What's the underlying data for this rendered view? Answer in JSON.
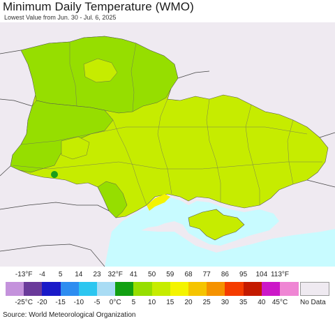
{
  "header": {
    "title": "Minimum Daily Temperature (WMO)",
    "subtitle": "Lowest Value from Jun. 30 - Jul. 6, 2025"
  },
  "map": {
    "region": "Ukraine",
    "colors": {
      "background_land": "#efeaf1",
      "sea": "#c8fbff",
      "level_10c": "#96de00",
      "level_15c": "#c6ec00",
      "level_20c": "#f4f400",
      "level_0c": "#1a9e1a"
    }
  },
  "legend": {
    "fahrenheit_ticks": [
      "-13°F",
      "-4",
      "5",
      "14",
      "23",
      "32°F",
      "41",
      "50",
      "59",
      "68",
      "77",
      "86",
      "95",
      "104",
      "113°F"
    ],
    "celsius_ticks": [
      "-25°C",
      "-20",
      "-15",
      "-10",
      "-5",
      "0°C",
      "5",
      "10",
      "15",
      "20",
      "25",
      "30",
      "35",
      "40",
      "45°C"
    ],
    "colors": [
      "#c492dc",
      "#6a3a9a",
      "#1a1ac8",
      "#2e8df0",
      "#2cc6f0",
      "#a9dcf4",
      "#12a012",
      "#96de00",
      "#c6ec00",
      "#f4f400",
      "#f5c400",
      "#f59200",
      "#f53c00",
      "#c41a00",
      "#cc18c8",
      "#ef86d4"
    ],
    "no_data_label": "No Data",
    "no_data_color": "#efeaf1"
  },
  "footer": {
    "source": "Source: World Meteorological Organization"
  }
}
